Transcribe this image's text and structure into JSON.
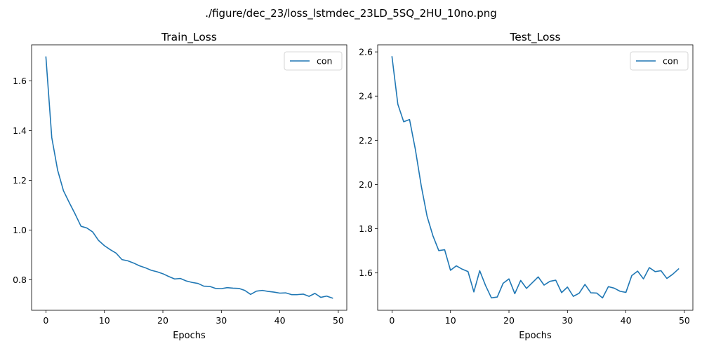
{
  "figure": {
    "suptitle": "./figure/dec_23/loss_lstmdec_23LD_5SQ_2HU_10no.png"
  },
  "colors": {
    "series": "#1f77b4"
  },
  "chart_data": [
    {
      "type": "line",
      "title": "Train_Loss",
      "xlabel": "Epochs",
      "ylabel": "",
      "xlim": [
        -2.45,
        51.45
      ],
      "ylim": [
        0.677,
        1.745
      ],
      "xticks": [
        0,
        10,
        20,
        30,
        40,
        50
      ],
      "yticks": [
        0.8,
        1.0,
        1.2,
        1.4,
        1.6
      ],
      "xtick_labels": [
        "0",
        "10",
        "20",
        "30",
        "40",
        "50"
      ],
      "ytick_labels": [
        "0.8",
        "1.0",
        "1.2",
        "1.4",
        "1.6"
      ],
      "legend": {
        "position": "upper-right",
        "entries": [
          "con"
        ]
      },
      "series": [
        {
          "name": "con",
          "x": [
            0,
            1,
            2,
            3,
            4,
            5,
            6,
            7,
            8,
            9,
            10,
            11,
            12,
            13,
            14,
            15,
            16,
            17,
            18,
            19,
            20,
            21,
            22,
            23,
            24,
            25,
            26,
            27,
            28,
            29,
            30,
            31,
            32,
            33,
            34,
            35,
            36,
            37,
            38,
            39,
            40,
            41,
            42,
            43,
            44,
            45,
            46,
            47,
            48,
            49
          ],
          "values": [
            1.696,
            1.372,
            1.241,
            1.158,
            1.11,
            1.064,
            1.015,
            1.008,
            0.992,
            0.958,
            0.937,
            0.921,
            0.907,
            0.881,
            0.876,
            0.867,
            0.856,
            0.848,
            0.838,
            0.832,
            0.824,
            0.813,
            0.803,
            0.805,
            0.795,
            0.789,
            0.785,
            0.774,
            0.773,
            0.765,
            0.764,
            0.768,
            0.766,
            0.765,
            0.757,
            0.741,
            0.754,
            0.757,
            0.753,
            0.75,
            0.746,
            0.747,
            0.74,
            0.74,
            0.742,
            0.733,
            0.745,
            0.729,
            0.734,
            0.726
          ]
        }
      ]
    },
    {
      "type": "line",
      "title": "Test_Loss",
      "xlabel": "Epochs",
      "ylabel": "",
      "xlim": [
        -2.45,
        51.45
      ],
      "ylim": [
        1.431,
        2.632
      ],
      "xticks": [
        0,
        10,
        20,
        30,
        40,
        50
      ],
      "yticks": [
        1.6,
        1.8,
        2.0,
        2.2,
        2.4,
        2.6
      ],
      "xtick_labels": [
        "0",
        "10",
        "20",
        "30",
        "40",
        "50"
      ],
      "ytick_labels": [
        "1.6",
        "1.8",
        "2.0",
        "2.2",
        "2.4",
        "2.6"
      ],
      "legend": {
        "position": "upper-right",
        "entries": [
          "con"
        ]
      },
      "series": [
        {
          "name": "con",
          "x": [
            0,
            1,
            2,
            3,
            4,
            5,
            6,
            7,
            8,
            9,
            10,
            11,
            12,
            13,
            14,
            15,
            16,
            17,
            18,
            19,
            20,
            21,
            22,
            23,
            24,
            25,
            26,
            27,
            28,
            29,
            30,
            31,
            32,
            33,
            34,
            35,
            36,
            37,
            38,
            39,
            40,
            41,
            42,
            43,
            44,
            45,
            46,
            47,
            48,
            49
          ],
          "values": [
            2.578,
            2.363,
            2.284,
            2.294,
            2.158,
            1.994,
            1.856,
            1.768,
            1.701,
            1.705,
            1.612,
            1.632,
            1.617,
            1.606,
            1.514,
            1.61,
            1.543,
            1.487,
            1.491,
            1.553,
            1.573,
            1.506,
            1.566,
            1.53,
            1.556,
            1.582,
            1.545,
            1.562,
            1.567,
            1.511,
            1.536,
            1.494,
            1.508,
            1.548,
            1.51,
            1.509,
            1.487,
            1.538,
            1.531,
            1.517,
            1.512,
            1.588,
            1.608,
            1.573,
            1.624,
            1.606,
            1.61,
            1.575,
            1.594,
            1.618
          ]
        }
      ]
    }
  ]
}
